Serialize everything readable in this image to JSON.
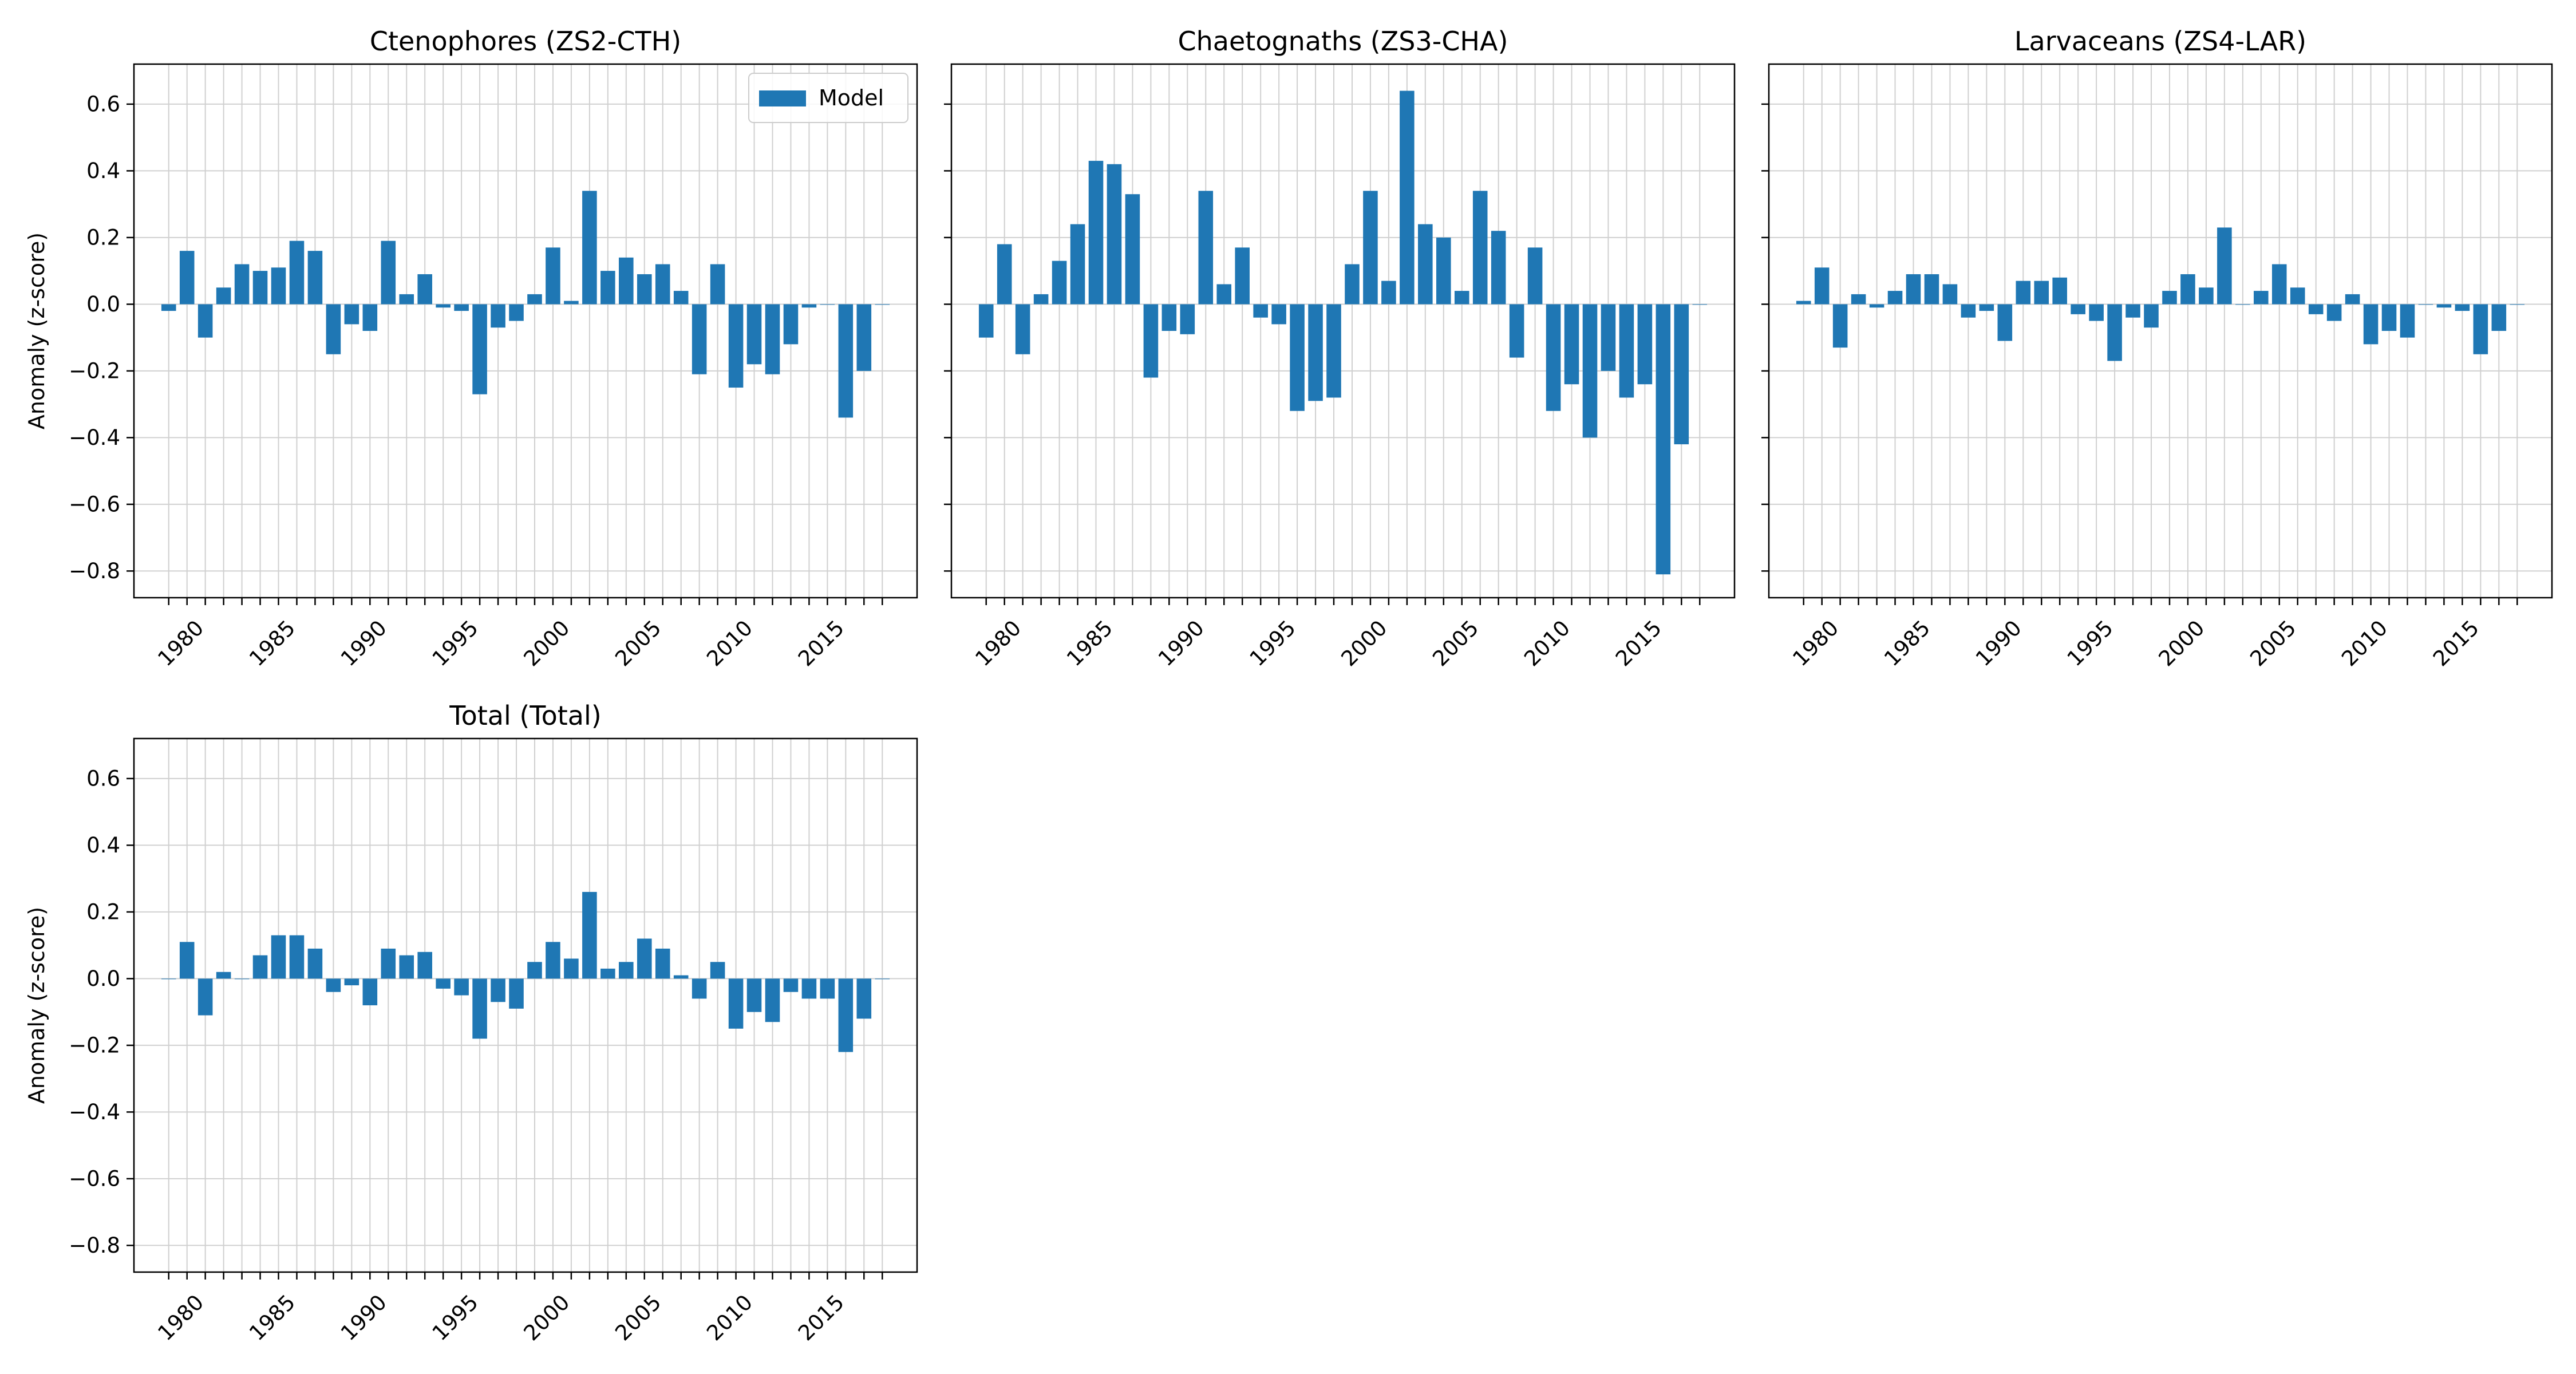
{
  "colors": {
    "bar": "#1f77b4",
    "grid": "#d0d0d0",
    "axis": "#000000"
  },
  "chart_data": [
    {
      "type": "bar",
      "title": "Ctenophores (ZS2-CTH)",
      "xlabel": "",
      "ylabel": "Anomaly (z-score)",
      "ylim": [
        -0.88,
        0.72
      ],
      "yticks": [
        -0.8,
        -0.6,
        -0.4,
        -0.2,
        0.0,
        0.2,
        0.4,
        0.6
      ],
      "ytick_labels": [
        "−0.8",
        "−0.6",
        "−0.4",
        "−0.2",
        "0.0",
        "0.2",
        "0.4",
        "0.6"
      ],
      "show_yticklabels": true,
      "grid": true,
      "legend": {
        "labels": [
          "Model"
        ],
        "placement": "top-right"
      },
      "x": [
        1979,
        1980,
        1981,
        1982,
        1983,
        1984,
        1985,
        1986,
        1987,
        1988,
        1989,
        1990,
        1991,
        1992,
        1993,
        1994,
        1995,
        1996,
        1997,
        1998,
        1999,
        2000,
        2001,
        2002,
        2003,
        2004,
        2005,
        2006,
        2007,
        2008,
        2009,
        2010,
        2011,
        2012,
        2013,
        2014,
        2015,
        2016,
        2017,
        2018
      ],
      "xticks": [
        1980,
        1985,
        1990,
        1995,
        2000,
        2005,
        2010,
        2015
      ],
      "series": [
        {
          "name": "Model",
          "values": [
            -0.02,
            0.16,
            -0.1,
            0.05,
            0.12,
            0.1,
            0.11,
            0.19,
            0.16,
            -0.15,
            -0.06,
            -0.08,
            0.19,
            0.03,
            0.09,
            -0.01,
            -0.02,
            -0.27,
            -0.07,
            -0.05,
            0.03,
            0.17,
            0.01,
            0.34,
            0.1,
            0.14,
            0.09,
            0.12,
            0.04,
            -0.21,
            0.12,
            -0.25,
            -0.18,
            -0.21,
            -0.12,
            -0.01,
            0.0,
            -0.34,
            -0.2,
            0.0
          ]
        }
      ]
    },
    {
      "type": "bar",
      "title": "Chaetognaths (ZS3-CHA)",
      "xlabel": "",
      "ylabel": "",
      "ylim": [
        -0.88,
        0.72
      ],
      "yticks": [
        -0.8,
        -0.6,
        -0.4,
        -0.2,
        0.0,
        0.2,
        0.4,
        0.6
      ],
      "ytick_labels": [
        "−0.8",
        "−0.6",
        "−0.4",
        "−0.2",
        "0.0",
        "0.2",
        "0.4",
        "0.6"
      ],
      "show_yticklabels": false,
      "grid": true,
      "x": [
        1979,
        1980,
        1981,
        1982,
        1983,
        1984,
        1985,
        1986,
        1987,
        1988,
        1989,
        1990,
        1991,
        1992,
        1993,
        1994,
        1995,
        1996,
        1997,
        1998,
        1999,
        2000,
        2001,
        2002,
        2003,
        2004,
        2005,
        2006,
        2007,
        2008,
        2009,
        2010,
        2011,
        2012,
        2013,
        2014,
        2015,
        2016,
        2017,
        2018
      ],
      "xticks": [
        1980,
        1985,
        1990,
        1995,
        2000,
        2005,
        2010,
        2015
      ],
      "series": [
        {
          "values": [
            -0.1,
            0.18,
            -0.15,
            0.03,
            0.13,
            0.24,
            0.43,
            0.42,
            0.33,
            -0.22,
            -0.08,
            -0.09,
            0.34,
            0.06,
            0.17,
            -0.04,
            -0.06,
            -0.32,
            -0.29,
            -0.28,
            0.12,
            0.34,
            0.07,
            0.64,
            0.24,
            0.2,
            0.04,
            0.34,
            0.22,
            -0.16,
            0.17,
            -0.32,
            -0.24,
            -0.4,
            -0.2,
            -0.28,
            -0.24,
            -0.81,
            -0.42,
            0.0
          ]
        }
      ]
    },
    {
      "type": "bar",
      "title": "Larvaceans (ZS4-LAR)",
      "xlabel": "",
      "ylabel": "",
      "ylim": [
        -0.88,
        0.72
      ],
      "yticks": [
        -0.8,
        -0.6,
        -0.4,
        -0.2,
        0.0,
        0.2,
        0.4,
        0.6
      ],
      "ytick_labels": [
        "−0.8",
        "−0.6",
        "−0.4",
        "−0.2",
        "0.0",
        "0.2",
        "0.4",
        "0.6"
      ],
      "show_yticklabels": false,
      "grid": true,
      "x": [
        1979,
        1980,
        1981,
        1982,
        1983,
        1984,
        1985,
        1986,
        1987,
        1988,
        1989,
        1990,
        1991,
        1992,
        1993,
        1994,
        1995,
        1996,
        1997,
        1998,
        1999,
        2000,
        2001,
        2002,
        2003,
        2004,
        2005,
        2006,
        2007,
        2008,
        2009,
        2010,
        2011,
        2012,
        2013,
        2014,
        2015,
        2016,
        2017,
        2018
      ],
      "xticks": [
        1980,
        1985,
        1990,
        1995,
        2000,
        2005,
        2010,
        2015
      ],
      "series": [
        {
          "values": [
            0.01,
            0.11,
            -0.13,
            0.03,
            -0.01,
            0.04,
            0.09,
            0.09,
            0.06,
            -0.04,
            -0.02,
            -0.11,
            0.07,
            0.07,
            0.08,
            -0.03,
            -0.05,
            -0.17,
            -0.04,
            -0.07,
            0.04,
            0.09,
            0.05,
            0.23,
            0.0,
            0.04,
            0.12,
            0.05,
            -0.03,
            -0.05,
            0.03,
            -0.12,
            -0.08,
            -0.1,
            0.0,
            -0.01,
            -0.02,
            -0.15,
            -0.08,
            0.0
          ]
        }
      ]
    },
    {
      "type": "bar",
      "title": "Total (Total)",
      "xlabel": "",
      "ylabel": "Anomaly (z-score)",
      "ylim": [
        -0.88,
        0.72
      ],
      "yticks": [
        -0.8,
        -0.6,
        -0.4,
        -0.2,
        0.0,
        0.2,
        0.4,
        0.6
      ],
      "ytick_labels": [
        "−0.8",
        "−0.6",
        "−0.4",
        "−0.2",
        "0.0",
        "0.2",
        "0.4",
        "0.6"
      ],
      "show_yticklabels": true,
      "grid": true,
      "x": [
        1979,
        1980,
        1981,
        1982,
        1983,
        1984,
        1985,
        1986,
        1987,
        1988,
        1989,
        1990,
        1991,
        1992,
        1993,
        1994,
        1995,
        1996,
        1997,
        1998,
        1999,
        2000,
        2001,
        2002,
        2003,
        2004,
        2005,
        2006,
        2007,
        2008,
        2009,
        2010,
        2011,
        2012,
        2013,
        2014,
        2015,
        2016,
        2017,
        2018
      ],
      "xticks": [
        1980,
        1985,
        1990,
        1995,
        2000,
        2005,
        2010,
        2015
      ],
      "series": [
        {
          "values": [
            0.0,
            0.11,
            -0.11,
            0.02,
            0.0,
            0.07,
            0.13,
            0.13,
            0.09,
            -0.04,
            -0.02,
            -0.08,
            0.09,
            0.07,
            0.08,
            -0.03,
            -0.05,
            -0.18,
            -0.07,
            -0.09,
            0.05,
            0.11,
            0.06,
            0.26,
            0.03,
            0.05,
            0.12,
            0.09,
            0.01,
            -0.06,
            0.05,
            -0.15,
            -0.1,
            -0.13,
            -0.04,
            -0.06,
            -0.06,
            -0.22,
            -0.12,
            0.0
          ]
        }
      ]
    }
  ]
}
